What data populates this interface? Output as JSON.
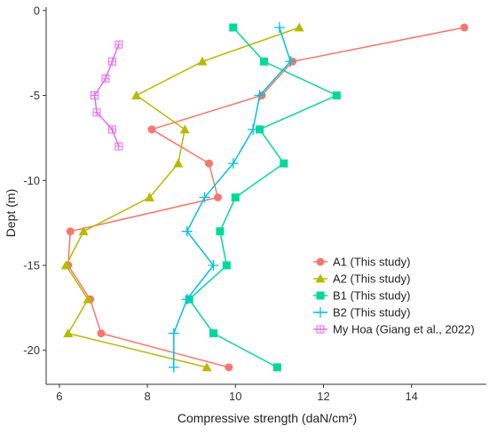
{
  "chart_data": {
    "type": "line",
    "xlabel": "Compressive strength (daN/cm²)",
    "ylabel": "Dept (m)",
    "xlim": [
      5.7,
      15.7
    ],
    "ylim": [
      -22,
      0.2
    ],
    "x_ticks": [
      6,
      8,
      10,
      12,
      14
    ],
    "y_ticks": [
      0,
      -5,
      -10,
      -15,
      -20
    ],
    "grid": false,
    "legend_position": "bottom-right",
    "series": [
      {
        "name": "A1 (This study)",
        "color": "#F8766D",
        "marker": "circle",
        "points": [
          {
            "x": 15.2,
            "y": -1
          },
          {
            "x": 11.3,
            "y": -3
          },
          {
            "x": 10.6,
            "y": -5
          },
          {
            "x": 8.1,
            "y": -7
          },
          {
            "x": 9.4,
            "y": -9
          },
          {
            "x": 9.6,
            "y": -11
          },
          {
            "x": 6.25,
            "y": -13
          },
          {
            "x": 6.2,
            "y": -15
          },
          {
            "x": 6.7,
            "y": -17
          },
          {
            "x": 6.95,
            "y": -19
          },
          {
            "x": 9.85,
            "y": -21
          }
        ]
      },
      {
        "name": "A2 (This study)",
        "color": "#B8B800",
        "marker": "triangle",
        "points": [
          {
            "x": 11.45,
            "y": -1
          },
          {
            "x": 9.25,
            "y": -3
          },
          {
            "x": 7.75,
            "y": -5
          },
          {
            "x": 8.85,
            "y": -7
          },
          {
            "x": 8.7,
            "y": -9
          },
          {
            "x": 8.05,
            "y": -11
          },
          {
            "x": 6.55,
            "y": -13
          },
          {
            "x": 6.15,
            "y": -15
          },
          {
            "x": 6.65,
            "y": -17
          },
          {
            "x": 6.2,
            "y": -19
          },
          {
            "x": 9.35,
            "y": -21
          }
        ]
      },
      {
        "name": "B1 (This study)",
        "color": "#00D99A",
        "marker": "square",
        "points": [
          {
            "x": 9.95,
            "y": -1
          },
          {
            "x": 10.65,
            "y": -3
          },
          {
            "x": 12.3,
            "y": -5
          },
          {
            "x": 10.55,
            "y": -7
          },
          {
            "x": 11.1,
            "y": -9
          },
          {
            "x": 10.0,
            "y": -11
          },
          {
            "x": 9.65,
            "y": -13
          },
          {
            "x": 9.8,
            "y": -15
          },
          {
            "x": 8.95,
            "y": -17
          },
          {
            "x": 9.5,
            "y": -19
          },
          {
            "x": 10.95,
            "y": -21
          }
        ]
      },
      {
        "name": "B2 (This study)",
        "color": "#00BFE8",
        "marker": "plus",
        "points": [
          {
            "x": 11.0,
            "y": -1
          },
          {
            "x": 11.25,
            "y": -3
          },
          {
            "x": 10.55,
            "y": -5
          },
          {
            "x": 10.4,
            "y": -7
          },
          {
            "x": 9.95,
            "y": -9
          },
          {
            "x": 9.3,
            "y": -11
          },
          {
            "x": 8.9,
            "y": -13
          },
          {
            "x": 9.5,
            "y": -15
          },
          {
            "x": 8.9,
            "y": -17
          },
          {
            "x": 8.6,
            "y": -19
          },
          {
            "x": 8.6,
            "y": -21
          }
        ]
      },
      {
        "name": "My Hoa (Giang et al., 2022)",
        "color": "#E66BF3",
        "marker": "boxplus",
        "points": [
          {
            "x": 7.35,
            "y": -2
          },
          {
            "x": 7.2,
            "y": -3
          },
          {
            "x": 7.05,
            "y": -4
          },
          {
            "x": 6.8,
            "y": -5
          },
          {
            "x": 6.85,
            "y": -6
          },
          {
            "x": 7.2,
            "y": -7
          },
          {
            "x": 7.35,
            "y": -8
          }
        ]
      }
    ]
  }
}
